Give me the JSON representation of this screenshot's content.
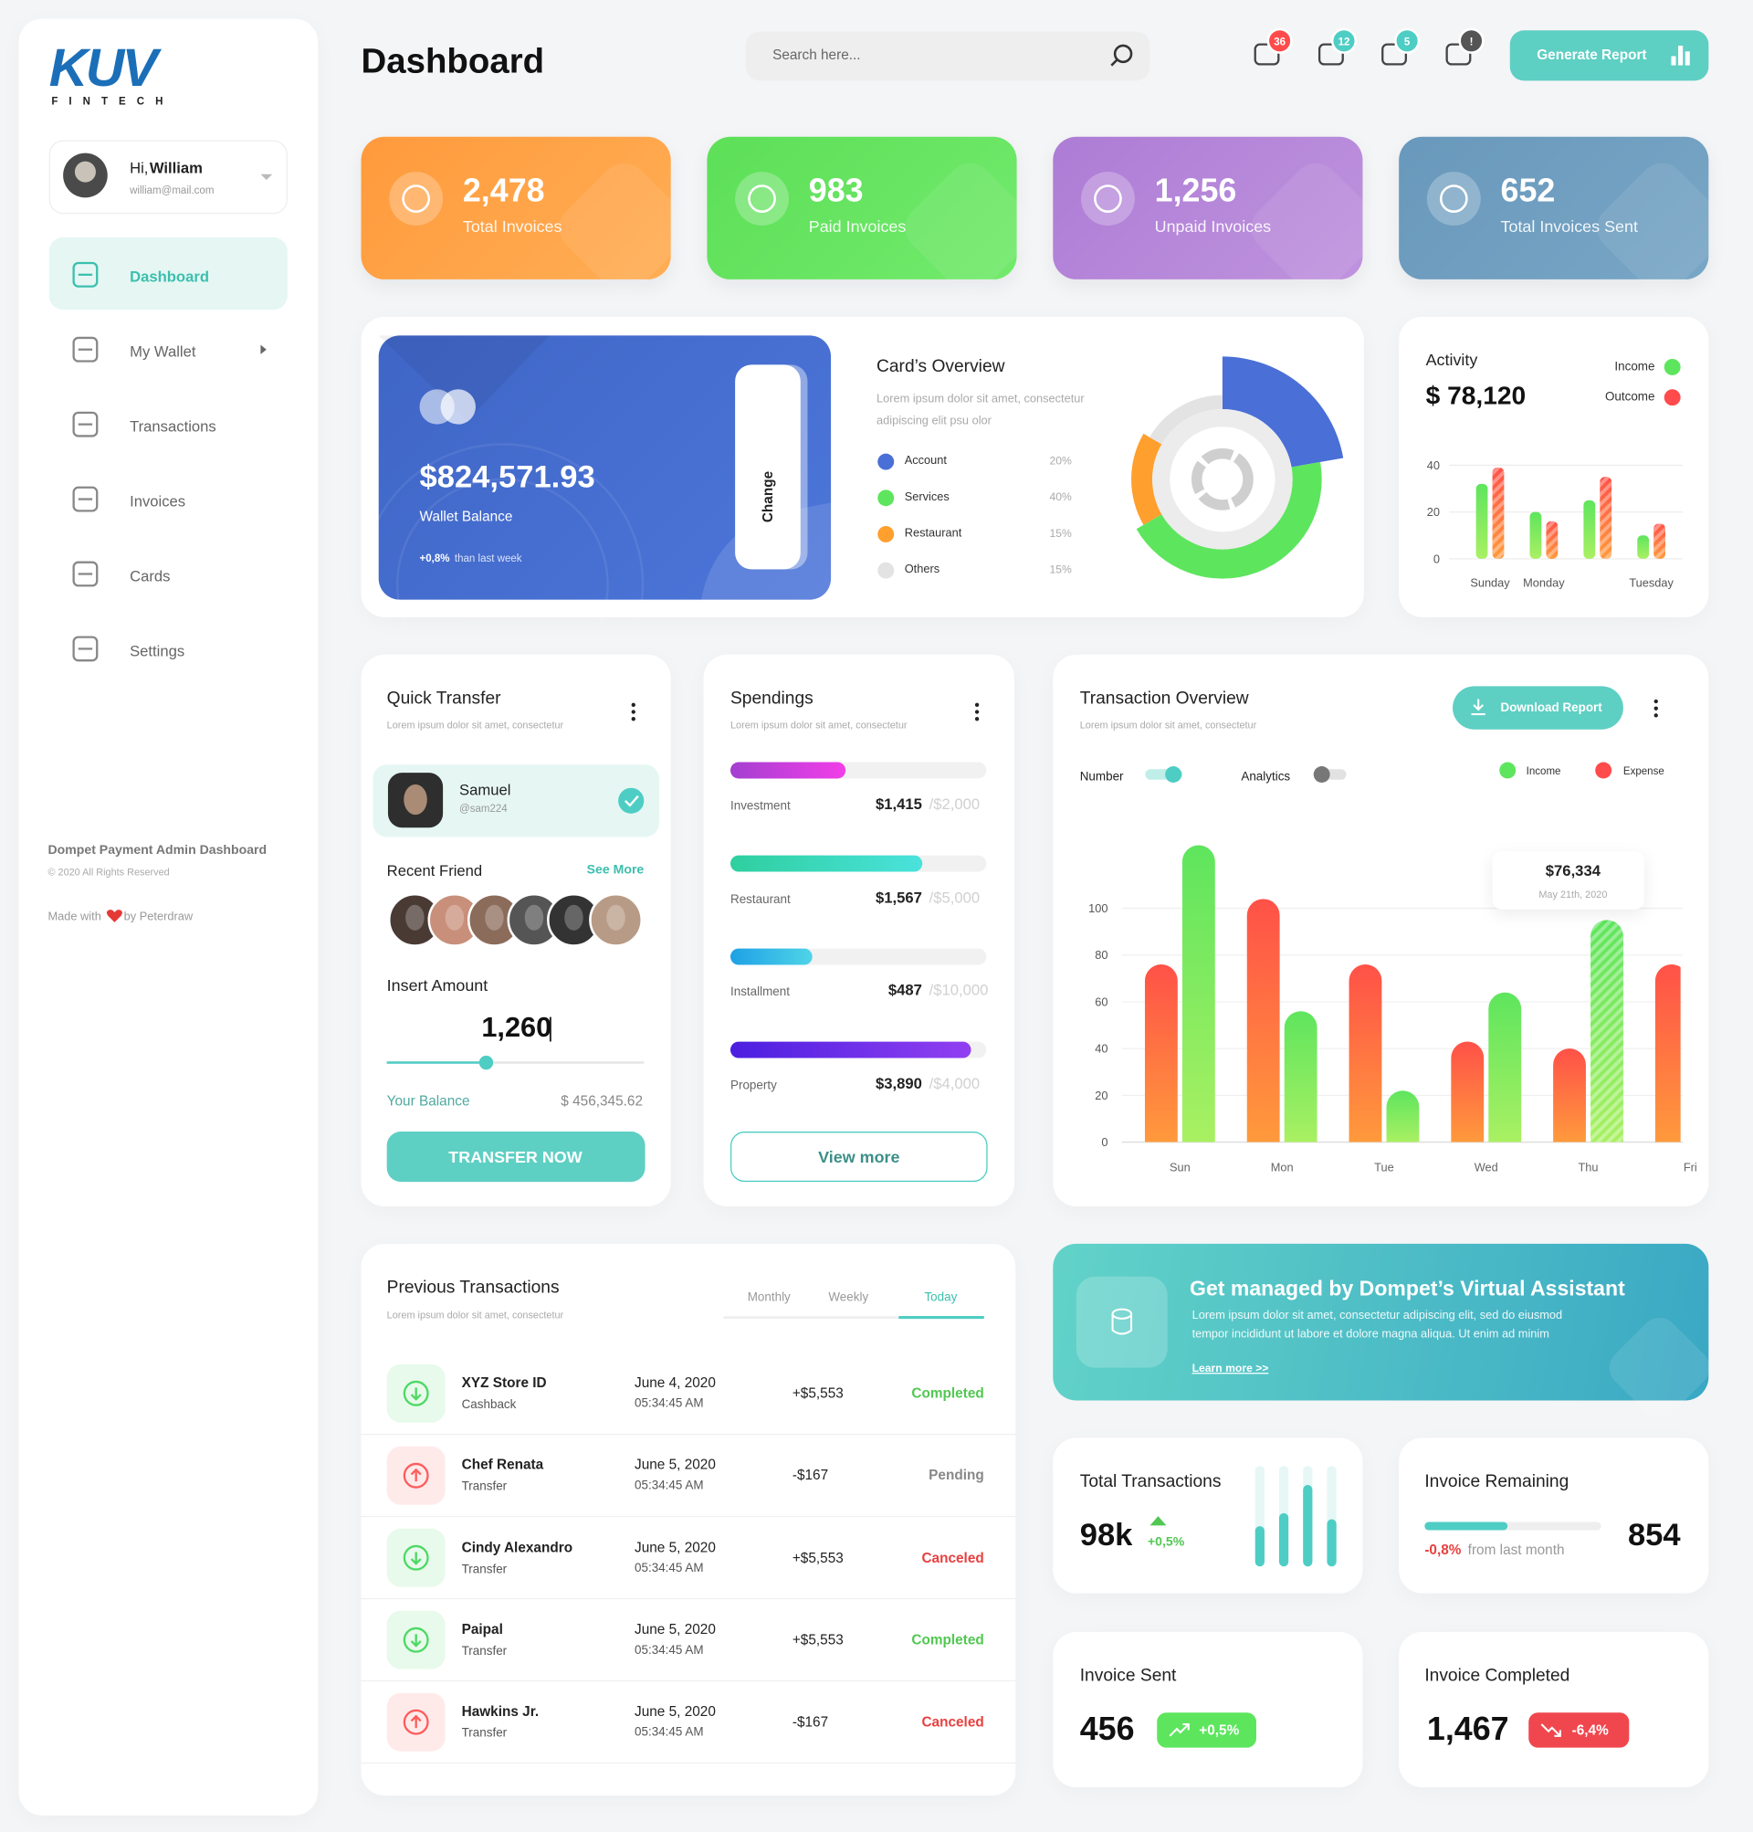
{
  "sidebar": {
    "logo": "KUV",
    "logo_sub": "FINTECH",
    "user": {
      "greeting": "Hi,",
      "name": "William",
      "email": "william@mail.com"
    },
    "menu": [
      "Dashboard",
      "My Wallet",
      "Transactions",
      "Invoices",
      "Cards",
      "Settings"
    ],
    "footer": {
      "title": "Dompet Payment Admin Dashboard",
      "copyright": "© 2020 All Rights Reserved",
      "made_with": "Made with",
      "by": "by Peterdraw"
    }
  },
  "header": {
    "title": "Dashboard",
    "search": "Search here...",
    "badges": [
      36,
      12,
      5,
      "!"
    ],
    "button": "Generate Report"
  },
  "stats": [
    {
      "value": "2,478",
      "label": "Total Invoices"
    },
    {
      "value": "983",
      "label": "Paid Invoices"
    },
    {
      "value": "1,256",
      "label": "Unpaid Invoices"
    },
    {
      "value": "652",
      "label": "Total Invoices Sent"
    }
  ],
  "wallet": {
    "balance": "$824,571.93",
    "label": "Wallet Balance",
    "change": "+0,8%",
    "change_text": "than last week",
    "button": "Change"
  },
  "chart_data": [
    {
      "type": "donut",
      "title": "Card’s Overview",
      "subtitle": "Lorem ipsum dolor sit amet, consectetur adipiscing elit psu olor",
      "categories": [
        "Account",
        "Services",
        "Restaurant",
        "Others"
      ],
      "values": [
        20,
        40,
        15,
        15
      ],
      "value_labels": [
        "20%",
        "40%",
        "15%",
        "15%"
      ],
      "colors": [
        "#4a6fd6",
        "#5ee55e",
        "#ff9f2e",
        "#e3e3e3"
      ]
    },
    {
      "type": "bar",
      "title": "Activity",
      "total": "$ 78,120",
      "categories": [
        "Sunday",
        "Monday",
        null,
        "Tuesday"
      ],
      "series": [
        {
          "name": "Income",
          "color": "#5ee55e",
          "values": [
            32,
            20,
            25,
            10
          ]
        },
        {
          "name": "Outcome",
          "color": "#ff4b4b",
          "values": [
            39,
            16,
            35,
            15
          ]
        }
      ],
      "ylim": [
        0,
        40
      ],
      "yticks": [
        0,
        20,
        40
      ],
      "grid": true
    },
    {
      "type": "bar",
      "title": "Transaction Overview",
      "subtitle": "Lorem ipsum dolor sit amet, consectetur",
      "button": "Download Report",
      "toggles": [
        "Number",
        "Analytics"
      ],
      "categories": [
        "Sun",
        "Mon",
        "Tue",
        "Wed",
        "Thu",
        "Fri"
      ],
      "series": [
        {
          "name": "Income",
          "color": "#5ee55e",
          "values": [
            127,
            56,
            22,
            64,
            95,
            null
          ]
        },
        {
          "name": "Expense",
          "color": "#ff4b4b",
          "values": [
            76,
            104,
            76,
            43,
            40,
            76
          ]
        }
      ],
      "ylim": [
        0,
        130
      ],
      "yticks": [
        0,
        20,
        40,
        60,
        80,
        100
      ],
      "grid": true,
      "tooltip": {
        "value": "$76,334",
        "date": "May 21th, 2020"
      }
    },
    {
      "type": "bar",
      "title": "Total Transactions",
      "value": "98k",
      "change": "+0,5%",
      "values": [
        40,
        53,
        81,
        47
      ],
      "ylim": [
        0,
        100
      ],
      "color": "#4ecdc4"
    }
  ],
  "quick_transfer": {
    "title": "Quick Transfer",
    "subtitle": "Lorem ipsum dolor sit amet, consectetur",
    "contact": {
      "name": "Samuel",
      "handle": "@sam224"
    },
    "recent": "Recent Friend",
    "see_more": "See More",
    "amount_label": "Insert Amount",
    "amount": "1,260",
    "balance_label": "Your Balance",
    "balance": "$ 456,345.62",
    "button": "TRANSFER NOW"
  },
  "spendings": {
    "title": "Spendings",
    "subtitle": "Lorem ipsum dolor sit amet, consectetur",
    "items": [
      {
        "name": "Investment",
        "value": "$1,415",
        "total": "/$2,000",
        "progress": 45
      },
      {
        "name": "Restaurant",
        "value": "$1,567",
        "total": "/$5,000",
        "progress": 75
      },
      {
        "name": "Installment",
        "value": "$487",
        "total": "/$10,000",
        "progress": 32
      },
      {
        "name": "Property",
        "value": "$3,890",
        "total": "/$4,000",
        "progress": 94
      }
    ],
    "button": "View more"
  },
  "transactions": {
    "title": "Previous Transactions",
    "subtitle": "Lorem ipsum dolor sit amet, consectetur",
    "tabs": [
      "Monthly",
      "Weekly",
      "Today"
    ],
    "rows": [
      {
        "name": "XYZ Store ID",
        "type": "Cashback",
        "date": "June 4, 2020",
        "time": "05:34:45 AM",
        "amount": "+$5,553",
        "status": "Completed",
        "color": "#4cd964",
        "status_color": "#52c752"
      },
      {
        "name": "Chef Renata",
        "type": "Transfer",
        "date": "June 5, 2020",
        "time": "05:34:45 AM",
        "amount": "-$167",
        "status": "Pending",
        "color": "#ff5b5b",
        "status_color": "#888888"
      },
      {
        "name": "Cindy Alexandro",
        "type": "Transfer",
        "date": "June 5, 2020",
        "time": "05:34:45 AM",
        "amount": "+$5,553",
        "status": "Canceled",
        "color": "#4cd964",
        "status_color": "#e84040"
      },
      {
        "name": "Paipal",
        "type": "Transfer",
        "date": "June 5, 2020",
        "time": "05:34:45 AM",
        "amount": "+$5,553",
        "status": "Completed",
        "color": "#4cd964",
        "status_color": "#52c752"
      },
      {
        "name": "Hawkins Jr.",
        "type": "Transfer",
        "date": "June 5, 2020",
        "time": "05:34:45 AM",
        "amount": "-$167",
        "status": "Canceled",
        "color": "#ff5b5b",
        "status_color": "#e84040"
      }
    ]
  },
  "assistant": {
    "title": "Get managed by Dompet’s Virtual Assistant",
    "text": "Lorem ipsum dolor sit amet, consectetur adipiscing elit, sed do eiusmod tempor incididunt ut labore et dolore magna aliqua. Ut enim ad minim",
    "link": "Learn more >>"
  },
  "invoice_remaining": {
    "title": "Invoice Remaining",
    "change": "-0,8%",
    "change_text": "from last month",
    "value": "854",
    "progress": 47
  },
  "invoice_sent": {
    "title": "Invoice Sent",
    "value": "456",
    "change": "+0,5%"
  },
  "invoice_completed": {
    "title": "Invoice Completed",
    "value": "1,467",
    "change": "-6,4%"
  }
}
